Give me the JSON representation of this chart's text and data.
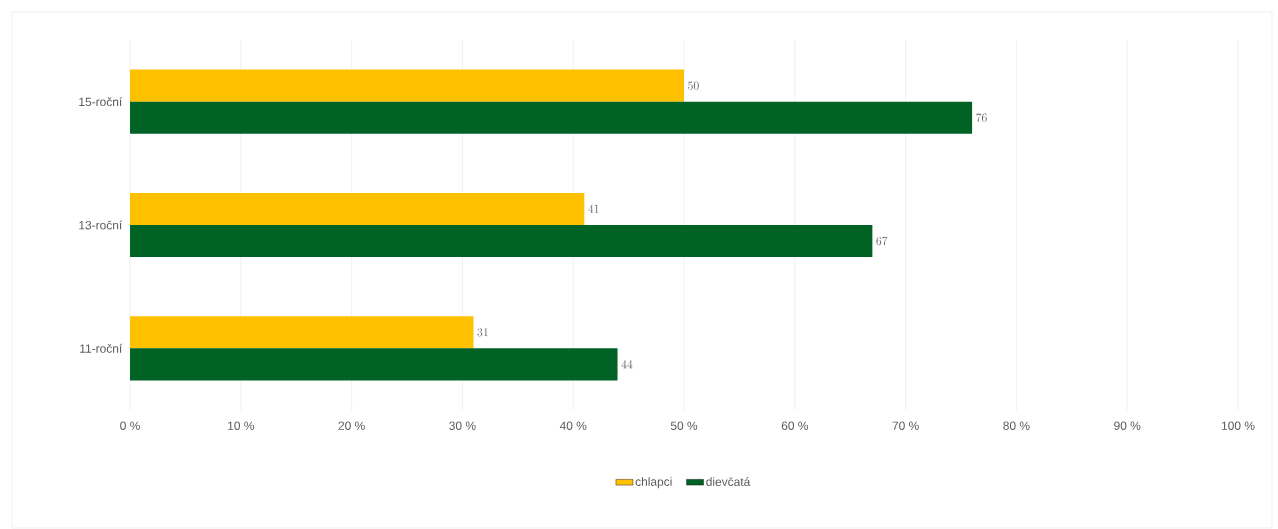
{
  "chart_data": {
    "type": "bar",
    "orientation": "horizontal",
    "categories": [
      "15-roční",
      "13-roční",
      "11-roční"
    ],
    "series": [
      {
        "name": "chlapci",
        "color": "#ffc000",
        "values": [
          50,
          41,
          31
        ]
      },
      {
        "name": "dievčatá",
        "color": "#006325",
        "values": [
          76,
          67,
          44
        ]
      }
    ],
    "xlim": [
      0,
      100
    ],
    "xticks": [
      {
        "value": 0,
        "label": "0 %"
      },
      {
        "value": 10,
        "label": "10 %"
      },
      {
        "value": 20,
        "label": "20 %"
      },
      {
        "value": 30,
        "label": "30 %"
      },
      {
        "value": 40,
        "label": "40 %"
      },
      {
        "value": 50,
        "label": "50 %"
      },
      {
        "value": 60,
        "label": "60 %"
      },
      {
        "value": 70,
        "label": "70 %"
      },
      {
        "value": 80,
        "label": "80 %"
      },
      {
        "value": 90,
        "label": "90 %"
      },
      {
        "value": 100,
        "label": "100 %"
      }
    ],
    "grid": "x",
    "legend": "bottom",
    "data_labels": true
  }
}
